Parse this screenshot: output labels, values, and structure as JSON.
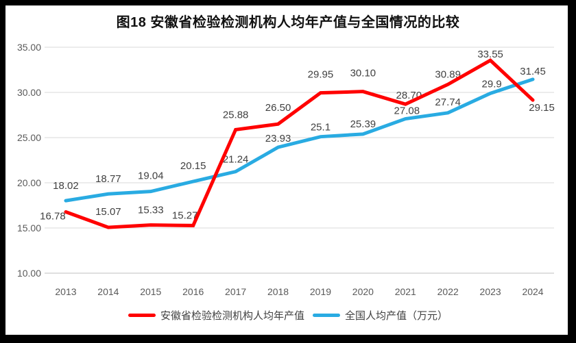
{
  "title": "图18 安徽省检验检测机构人均年产值与全国情况的比较",
  "chart_data": {
    "type": "line",
    "title": "图18 安徽省检验检测机构人均年产值与全国情况的比较",
    "categories": [
      "2013",
      "2014",
      "2015",
      "2016",
      "2017",
      "2018",
      "2019",
      "2020",
      "2021",
      "2022",
      "2023",
      "2024"
    ],
    "ylim": [
      10,
      35
    ],
    "y_ticks": [
      "10.00",
      "15.00",
      "20.00",
      "25.00",
      "30.00",
      "35.00"
    ],
    "grid": true,
    "legend_position": "bottom",
    "gridline_color": "#D9D9D9",
    "baseline_color": "#BFBFBF",
    "axis_label_color": "#595959",
    "data_label_color": "#404040",
    "series": [
      {
        "key": "anhui",
        "name": "安徽省检验检测机构人均年产值",
        "color": "#FF0000",
        "values": [
          16.78,
          15.07,
          15.33,
          15.27,
          25.88,
          26.5,
          29.95,
          30.1,
          28.7,
          30.89,
          33.55,
          29.15
        ],
        "labels": [
          "16.78",
          "15.07",
          "15.33",
          "15.27",
          "25.88",
          "26.50",
          "29.95",
          "30.10",
          "28.70",
          "30.89",
          "33.55",
          "29.15"
        ],
        "label_offsets": [
          [
            -19,
            6
          ],
          [
            0,
            -23
          ],
          [
            0,
            -22
          ],
          [
            -12,
            -15
          ],
          [
            0,
            -22
          ],
          [
            0,
            -24
          ],
          [
            0,
            -27
          ],
          [
            0,
            -27
          ],
          [
            5,
            -13
          ],
          [
            0,
            -15
          ],
          [
            0,
            -9
          ],
          [
            13,
            11
          ]
        ]
      },
      {
        "key": "national",
        "name": "全国人均产值（万元）",
        "color": "#29ABE2",
        "values": [
          18.02,
          18.77,
          19.04,
          20.15,
          21.24,
          23.93,
          25.1,
          25.39,
          27.08,
          27.74,
          29.9,
          31.45
        ],
        "labels": [
          "18.02",
          "18.77",
          "19.04",
          "20.15",
          "21.24",
          "23.93",
          "25.1",
          "25.39",
          "27.08",
          "27.74",
          "29.9",
          "31.45"
        ],
        "label_offsets": [
          [
            0,
            -22
          ],
          [
            0,
            -22
          ],
          [
            0,
            -23
          ],
          [
            0,
            -23
          ],
          [
            0,
            -18
          ],
          [
            0,
            -13
          ],
          [
            0,
            -14
          ],
          [
            0,
            -15
          ],
          [
            2,
            -12
          ],
          [
            0,
            -16
          ],
          [
            2,
            -14
          ],
          [
            0,
            -12
          ]
        ]
      }
    ]
  }
}
